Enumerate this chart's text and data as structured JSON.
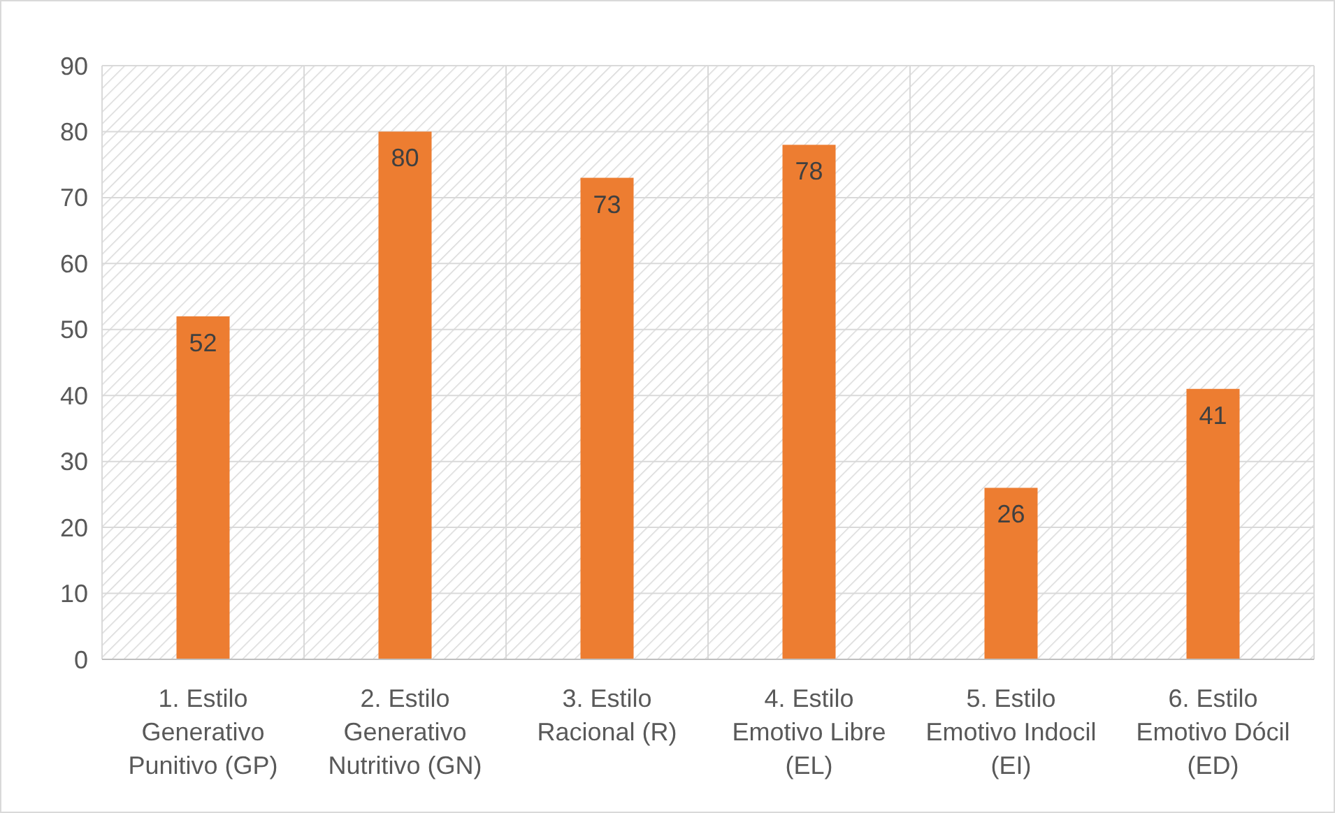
{
  "chart_data": {
    "type": "bar",
    "categories": [
      "1. Estilo Generativo Punitivo (GP)",
      "2. Estilo Generativo Nutritivo (GN)",
      "3. Estilo Racional (R)",
      "4. Estilo Emotivo Libre (EL)",
      "5. Estilo Emotivo Indocil (EI)",
      "6. Estilo Emotivo Dócil (ED)"
    ],
    "values": [
      52,
      80,
      73,
      78,
      26,
      41
    ],
    "color": "#ed7d31",
    "ylim": [
      0,
      90
    ],
    "yticks": [
      0,
      10,
      20,
      30,
      40,
      50,
      60,
      70,
      80,
      90
    ],
    "grid": true,
    "data_labels": true
  }
}
